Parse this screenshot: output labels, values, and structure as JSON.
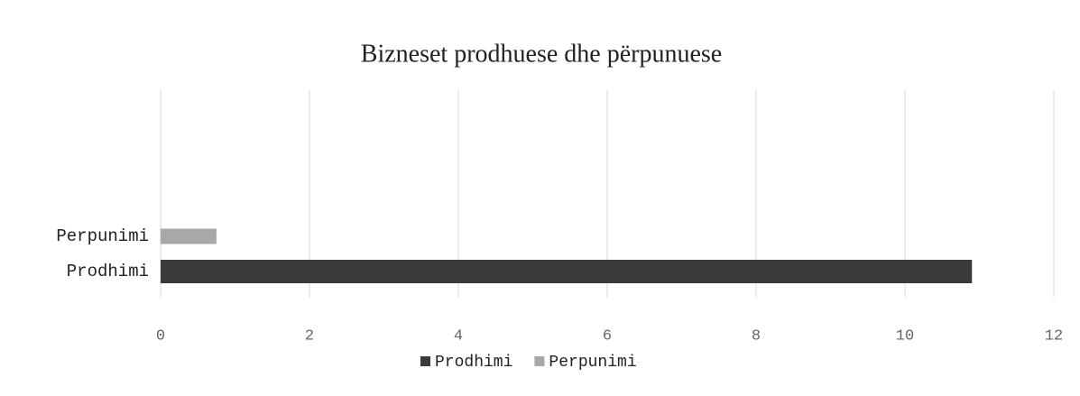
{
  "chart_data": {
    "type": "bar",
    "orientation": "horizontal",
    "title": "Bizneset prodhuese dhe përpunuese",
    "categories": [
      "Prodhimi",
      "Perpunimi"
    ],
    "series": [
      {
        "name": "Prodhimi",
        "color": "#3a3a3a",
        "values": [
          10.9,
          null
        ]
      },
      {
        "name": "Perpunimi",
        "color": "#a8a8a8",
        "values": [
          null,
          0.75
        ]
      }
    ],
    "xlim": [
      0,
      12
    ],
    "xticks": [
      0,
      2,
      4,
      6,
      8,
      10,
      12
    ],
    "grid": true,
    "legend": "bottom"
  }
}
